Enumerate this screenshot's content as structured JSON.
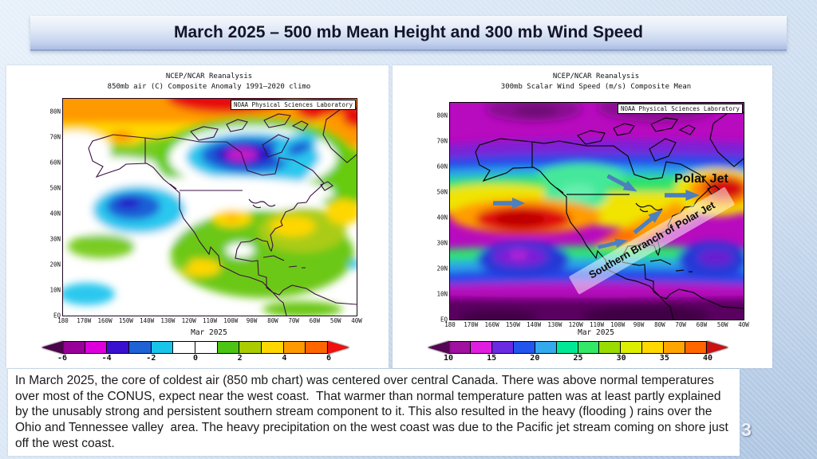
{
  "title": "March 2025 – 500 mb Mean Height and 300 mb Wind Speed",
  "page_number": "3",
  "caption": "In March 2025, the core of coldest air (850 mb chart) was centered over central Canada. There was above normal temperatures over most of the CONUS, expect near the west coast.  That warmer than normal temperature patten was at least partly explained by the unusably strong and persistent southern stream component to it. This also resulted in the heavy (flooding ) rains over the Ohio and Tennessee valley  area. The heavy precipitation on the west coast was due to the Pacific jet stream coming on shore just off the west coast.",
  "maps": {
    "left": {
      "title_line1": "NCEP/NCAR Reanalysis",
      "title_line2": "850mb air (C) Composite Anomaly 1991–2020 climo",
      "source_label": "NOAA Physical Sciences Laboratory",
      "period": "Mar 2025",
      "lat_ticks": [
        "80N",
        "70N",
        "60N",
        "50N",
        "40N",
        "30N",
        "20N",
        "10N",
        "EQ"
      ],
      "lon_ticks": [
        "180",
        "170W",
        "160W",
        "150W",
        "140W",
        "130W",
        "120W",
        "110W",
        "100W",
        "90W",
        "80W",
        "70W",
        "60W",
        "50W",
        "40W"
      ],
      "colorbar": {
        "ticks": [
          "-6",
          "-4",
          "-2",
          "0",
          "2",
          "4",
          "6"
        ],
        "segments": [
          "#990099",
          "#DD00DD",
          "#3A10D0",
          "#1E62D6",
          "#18C4EA",
          "#FFFFFF",
          "#FFFFFF",
          "#4CC413",
          "#AACC00",
          "#FFD700",
          "#FF9900",
          "#FF6600"
        ],
        "arrow_left": "#4A054A",
        "arrow_right": "#F01010"
      }
    },
    "right": {
      "title_line1": "NCEP/NCAR Reanalysis",
      "title_line2": "300mb Scalar Wind Speed (m/s) Composite Mean",
      "source_label": "NOAA Physical Sciences Laboratory",
      "period": "Mar 2025",
      "lat_ticks": [
        "80N",
        "70N",
        "60N",
        "50N",
        "40N",
        "30N",
        "20N",
        "10N",
        "EQ"
      ],
      "lon_ticks": [
        "180",
        "170W",
        "160W",
        "150W",
        "140W",
        "130W",
        "120W",
        "110W",
        "100W",
        "90W",
        "80W",
        "70W",
        "60W",
        "50W",
        "40W"
      ],
      "annotations": {
        "polar_jet": "Polar Jet",
        "southern_branch": "Southern Branch of Polar Jet"
      },
      "colorbar": {
        "ticks": [
          "10",
          "15",
          "20",
          "25",
          "30",
          "35",
          "40"
        ],
        "segments": [
          "#A011A0",
          "#E01EE0",
          "#6A2BE2",
          "#2255EE",
          "#33AAEE",
          "#00E896",
          "#33E866",
          "#99DD00",
          "#DDEE00",
          "#FFD900",
          "#FFA500",
          "#FF6600"
        ],
        "arrow_left": "#550555",
        "arrow_right": "#CC1111"
      }
    }
  },
  "chart_data": [
    {
      "type": "heatmap",
      "panel": "left",
      "title": "NCEP/NCAR Reanalysis",
      "subtitle": "850mb air (C) Composite Anomaly 1991–2020 climo",
      "period": "Mar 2025",
      "x_ticks": [
        "180",
        "170W",
        "160W",
        "150W",
        "140W",
        "130W",
        "120W",
        "110W",
        "100W",
        "90W",
        "80W",
        "70W",
        "60W",
        "50W",
        "40W"
      ],
      "y_ticks": [
        "80N",
        "70N",
        "60N",
        "50N",
        "40N",
        "30N",
        "20N",
        "10N",
        "EQ"
      ],
      "source_label": "NOAA Physical Sciences Laboratory",
      "colorbar": {
        "unit": "C",
        "ticks": [
          -6,
          -4,
          -2,
          0,
          2,
          4,
          6
        ],
        "colors": [
          "#990099",
          "#DD00DD",
          "#3A10D0",
          "#1E62D6",
          "#18C4EA",
          "#FFFFFF",
          "#FFFFFF",
          "#4CC413",
          "#AACC00",
          "#FFD700",
          "#FF9900",
          "#FF6600"
        ]
      },
      "features": [
        "Cold anomaly core (below -6 C, magenta) centered over Hudson Bay / central Canada near 60N 90W",
        "Secondary cold anomaly (-2 to -5 C) over the North Pacific near 45N 150W",
        "Warm anomalies (+2 to +6 C) across the high Arctic, Arctic Archipelago and Greenland",
        "Near to above normal temperatures (0 to +4 C) over most of the CONUS, Mexico and the subtropical Atlantic"
      ]
    },
    {
      "type": "heatmap",
      "panel": "right",
      "title": "NCEP/NCAR Reanalysis",
      "subtitle": "300mb Scalar Wind Speed (m/s) Composite Mean",
      "period": "Mar 2025",
      "x_ticks": [
        "180",
        "170W",
        "160W",
        "150W",
        "140W",
        "130W",
        "120W",
        "110W",
        "100W",
        "90W",
        "80W",
        "70W",
        "60W",
        "50W",
        "40W"
      ],
      "y_ticks": [
        "80N",
        "70N",
        "60N",
        "50N",
        "40N",
        "30N",
        "20N",
        "10N",
        "EQ"
      ],
      "source_label": "NOAA Physical Sciences Laboratory",
      "colorbar": {
        "unit": "m/s",
        "ticks": [
          10,
          15,
          20,
          25,
          30,
          35,
          40
        ],
        "colors": [
          "#A011A0",
          "#E01EE0",
          "#6A2BE2",
          "#2255EE",
          "#33AAEE",
          "#00E896",
          "#33E866",
          "#99DD00",
          "#DDEE00",
          "#FFD900",
          "#FFA500",
          "#FF6600"
        ]
      },
      "annotations": [
        "Polar Jet",
        "Southern Branch of Polar Jet"
      ],
      "features": [
        "Pacific jet maximum above 40 m/s near 43N 150W with eastward arrow annotation",
        "Second jet maximum near 50N 50W over the northwest Atlantic (Polar Jet label)",
        "Southern branch of the polar jet running northeastward from ~25N 110W across the Gulf / Ohio-Tennessee region to the Atlantic",
        "Wind minima below 10 m/s over the Arctic and the deep tropics"
      ]
    }
  ]
}
